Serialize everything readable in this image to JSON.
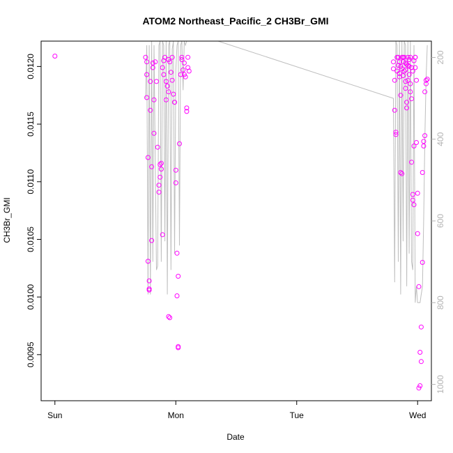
{
  "chart_data": {
    "type": "scatter",
    "title": "ATOM2 Northeast_Pacific_2 CH3Br_GMI",
    "xlabel": "Date",
    "ylabel": "CH3Br_GMI",
    "x_ticks": [
      "Sun",
      "Mon",
      "Tue",
      "Wed"
    ],
    "y_ticks": [
      "0.0095",
      "0.0100",
      "0.0105",
      "0.0110",
      "0.0115",
      "0.0120"
    ],
    "y_tick_values": [
      0.0095,
      0.01,
      0.0105,
      0.011,
      0.0115,
      0.012
    ],
    "y2_ticks": [
      "200",
      "400",
      "600",
      "800",
      "1000"
    ],
    "y2_tick_values": [
      200,
      400,
      600,
      800,
      1000
    ],
    "xlim_days": [
      -0.114,
      3.114
    ],
    "ylim": [
      0.0091,
      0.01222
    ],
    "y2lim": [
      1040,
      160
    ],
    "grid": false,
    "series": [
      {
        "color": "#ff00ff",
        "marker": "open-circle",
        "points": [
          [
            0.0,
            0.01209
          ],
          [
            0.75,
            0.01208
          ],
          [
            0.76,
            0.01204
          ],
          [
            0.76,
            0.01193
          ],
          [
            0.76,
            0.01173
          ],
          [
            0.77,
            0.01121
          ],
          [
            0.77,
            0.01031
          ],
          [
            0.78,
            0.01007
          ],
          [
            0.78,
            0.01006
          ],
          [
            0.78,
            0.01014
          ],
          [
            0.79,
            0.01162
          ],
          [
            0.79,
            0.01187
          ],
          [
            0.8,
            0.01113
          ],
          [
            0.8,
            0.01049
          ],
          [
            0.81,
            0.01203
          ],
          [
            0.81,
            0.01199
          ],
          [
            0.82,
            0.01171
          ],
          [
            0.82,
            0.01142
          ],
          [
            0.83,
            0.01204
          ],
          [
            0.84,
            0.01187
          ],
          [
            0.85,
            0.0113
          ],
          [
            0.86,
            0.01097
          ],
          [
            0.86,
            0.01091
          ],
          [
            0.87,
            0.01104
          ],
          [
            0.87,
            0.01115
          ],
          [
            0.88,
            0.01116
          ],
          [
            0.88,
            0.01111
          ],
          [
            0.89,
            0.01054
          ],
          [
            0.89,
            0.01199
          ],
          [
            0.9,
            0.01205
          ],
          [
            0.9,
            0.01193
          ],
          [
            0.91,
            0.01208
          ],
          [
            0.92,
            0.01171
          ],
          [
            0.92,
            0.01187
          ],
          [
            0.93,
            0.01183
          ],
          [
            0.94,
            0.01178
          ],
          [
            0.94,
            0.01206
          ],
          [
            0.95,
            0.01204
          ],
          [
            0.96,
            0.01195
          ],
          [
            0.97,
            0.01188
          ],
          [
            0.97,
            0.01208
          ],
          [
            0.98,
            0.01176
          ],
          [
            0.99,
            0.01169
          ],
          [
            0.99,
            0.01169
          ],
          [
            1.0,
            0.0111
          ],
          [
            1.0,
            0.01099
          ],
          [
            1.01,
            0.01038
          ],
          [
            1.01,
            0.01001
          ],
          [
            1.02,
            0.01018
          ],
          [
            1.02,
            0.00957
          ],
          [
            1.02,
            0.00956
          ],
          [
            1.03,
            0.01133
          ],
          [
            1.04,
            0.01193
          ],
          [
            1.05,
            0.01206
          ],
          [
            1.05,
            0.01208
          ],
          [
            1.06,
            0.01197
          ],
          [
            1.07,
            0.01203
          ],
          [
            1.07,
            0.01193
          ],
          [
            1.08,
            0.01191
          ],
          [
            1.09,
            0.01164
          ],
          [
            1.09,
            0.01161
          ],
          [
            1.1,
            0.01208
          ],
          [
            1.1,
            0.01199
          ],
          [
            1.11,
            0.01196
          ],
          [
            0.94,
            0.00983
          ],
          [
            0.95,
            0.00982
          ],
          [
            2.8,
            0.01204
          ],
          [
            2.8,
            0.01198
          ],
          [
            2.81,
            0.01188
          ],
          [
            2.81,
            0.01162
          ],
          [
            2.82,
            0.01143
          ],
          [
            2.82,
            0.01141
          ],
          [
            2.83,
            0.01208
          ],
          [
            2.84,
            0.01201
          ],
          [
            2.85,
            0.01194
          ],
          [
            2.86,
            0.01175
          ],
          [
            2.86,
            0.01108
          ],
          [
            2.87,
            0.01107
          ],
          [
            2.88,
            0.01208
          ],
          [
            2.88,
            0.01204
          ],
          [
            2.89,
            0.01196
          ],
          [
            2.9,
            0.01187
          ],
          [
            2.9,
            0.01181
          ],
          [
            2.91,
            0.01169
          ],
          [
            2.91,
            0.01164
          ],
          [
            2.92,
            0.01208
          ],
          [
            2.93,
            0.012
          ],
          [
            2.93,
            0.01193
          ],
          [
            2.94,
            0.01185
          ],
          [
            2.94,
            0.01178
          ],
          [
            2.95,
            0.01172
          ],
          [
            2.95,
            0.01117
          ],
          [
            2.96,
            0.01089
          ],
          [
            2.96,
            0.01084
          ],
          [
            2.97,
            0.0108
          ],
          [
            2.97,
            0.01131
          ],
          [
            2.98,
            0.01208
          ],
          [
            2.98,
            0.01199
          ],
          [
            2.99,
            0.01188
          ],
          [
            2.99,
            0.01134
          ],
          [
            3.0,
            0.0109
          ],
          [
            3.0,
            0.01055
          ],
          [
            3.01,
            0.01009
          ],
          [
            3.01,
            0.00921
          ],
          [
            3.02,
            0.00923
          ],
          [
            3.02,
            0.00952
          ],
          [
            3.03,
            0.00944
          ],
          [
            3.03,
            0.00974
          ],
          [
            3.04,
            0.0103
          ],
          [
            3.04,
            0.01108
          ],
          [
            3.05,
            0.01131
          ],
          [
            3.05,
            0.01135
          ],
          [
            3.06,
            0.0114
          ],
          [
            3.06,
            0.01178
          ],
          [
            3.07,
            0.01188
          ],
          [
            3.07,
            0.01185
          ],
          [
            3.08,
            0.01189
          ],
          [
            2.84,
            0.01208
          ],
          [
            2.85,
            0.01204
          ],
          [
            2.87,
            0.01198
          ],
          [
            2.89,
            0.01208
          ],
          [
            2.9,
            0.01203
          ],
          [
            2.92,
            0.01188
          ],
          [
            2.94,
            0.01208
          ],
          [
            2.95,
            0.01199
          ],
          [
            2.97,
            0.01205
          ],
          [
            2.98,
            0.01208
          ],
          [
            2.86,
            0.012
          ],
          [
            2.88,
            0.01192
          ],
          [
            2.91,
            0.01202
          ],
          [
            2.93,
            0.01206
          ],
          [
            2.96,
            0.01196
          ],
          [
            2.9,
            0.01197
          ],
          [
            2.83,
            0.01196
          ],
          [
            2.87,
            0.01208
          ],
          [
            2.92,
            0.01201
          ],
          [
            2.85,
            0.01191
          ]
        ]
      },
      {
        "color": "#bebebe",
        "marker": "line",
        "axis": "right",
        "points": [
          [
            0.75,
            300
          ],
          [
            0.76,
            170
          ],
          [
            0.77,
            780
          ],
          [
            0.78,
            170
          ],
          [
            0.79,
            780
          ],
          [
            0.8,
            160
          ],
          [
            0.81,
            700
          ],
          [
            0.82,
            170
          ],
          [
            0.84,
            720
          ],
          [
            0.85,
            710
          ],
          [
            0.86,
            170
          ],
          [
            0.87,
            160
          ],
          [
            0.88,
            700
          ],
          [
            0.89,
            160
          ],
          [
            0.9,
            170
          ],
          [
            0.91,
            650
          ],
          [
            0.92,
            160
          ],
          [
            0.93,
            780
          ],
          [
            0.94,
            170
          ],
          [
            0.95,
            160
          ],
          [
            0.96,
            720
          ],
          [
            0.97,
            180
          ],
          [
            0.98,
            160
          ],
          [
            0.99,
            680
          ],
          [
            1.0,
            230
          ],
          [
            1.01,
            170
          ],
          [
            1.02,
            160
          ],
          [
            1.03,
            660
          ],
          [
            1.04,
            170
          ],
          [
            1.05,
            160
          ],
          [
            1.06,
            280
          ],
          [
            1.07,
            160
          ],
          [
            1.08,
            170
          ],
          [
            1.09,
            160
          ],
          [
            1.1,
            160
          ],
          [
            1.35,
            160
          ],
          [
            2.8,
            300
          ],
          [
            2.81,
            750
          ],
          [
            2.82,
            160
          ],
          [
            2.83,
            170
          ],
          [
            2.84,
            700
          ],
          [
            2.85,
            160
          ],
          [
            2.86,
            780
          ],
          [
            2.87,
            160
          ],
          [
            2.88,
            650
          ],
          [
            2.89,
            160
          ],
          [
            2.9,
            170
          ],
          [
            2.91,
            760
          ],
          [
            2.92,
            160
          ],
          [
            2.93,
            680
          ],
          [
            2.94,
            160
          ],
          [
            2.95,
            700
          ],
          [
            2.96,
            720
          ],
          [
            2.97,
            170
          ],
          [
            2.98,
            800
          ],
          [
            2.99,
            760
          ],
          [
            3.0,
            800
          ],
          [
            3.01,
            800
          ],
          [
            3.02,
            800
          ],
          [
            3.03,
            780
          ],
          [
            3.04,
            760
          ],
          [
            3.05,
            600
          ],
          [
            3.06,
            400
          ],
          [
            3.07,
            250
          ],
          [
            3.08,
            170
          ]
        ]
      }
    ]
  }
}
